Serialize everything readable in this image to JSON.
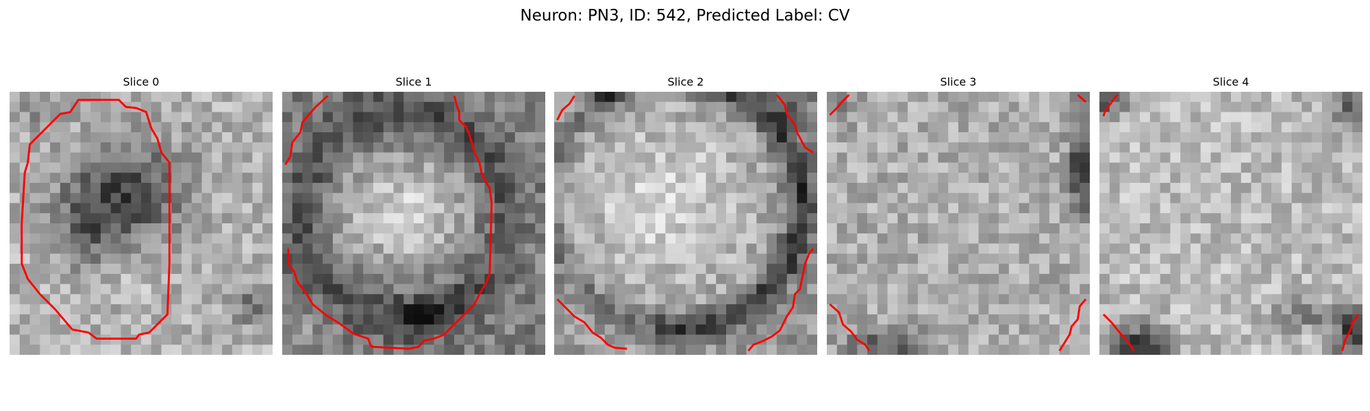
{
  "figure": {
    "title": "Neuron: PN3, ID: 542, Predicted Label: CV"
  },
  "panels": [
    {
      "title": "Slice 0",
      "pattern": "dark-blob-center",
      "contour_color": "#ff0000",
      "contours": [
        [
          [
            9.5,
            0.8
          ],
          [
            6.8,
            0.8
          ],
          [
            6.0,
            2.0
          ],
          [
            5.0,
            2.2
          ],
          [
            2.0,
            5.2
          ],
          [
            1.8,
            7.0
          ],
          [
            1.5,
            8.0
          ],
          [
            1.2,
            13.0
          ],
          [
            1.2,
            17.0
          ],
          [
            1.8,
            18.5
          ],
          [
            3.0,
            20.0
          ],
          [
            4.5,
            21.5
          ],
          [
            6.2,
            23.5
          ],
          [
            7.8,
            23.8
          ],
          [
            8.6,
            24.4
          ],
          [
            12.5,
            24.4
          ],
          [
            12.8,
            24.0
          ],
          [
            13.8,
            23.8
          ],
          [
            14.6,
            23.0
          ],
          [
            15.6,
            22.0
          ],
          [
            15.8,
            17.0
          ],
          [
            15.8,
            7.0
          ],
          [
            15.0,
            6.0
          ],
          [
            14.6,
            4.6
          ],
          [
            14.0,
            3.6
          ],
          [
            13.5,
            2.0
          ],
          [
            12.5,
            1.6
          ],
          [
            11.5,
            1.5
          ],
          [
            10.8,
            0.8
          ],
          [
            9.5,
            0.8
          ]
        ]
      ]
    },
    {
      "title": "Slice 1",
      "pattern": "bright-blob-dark-ring",
      "contour_color": "#ff0000",
      "contours": [
        [
          [
            0.3,
            7.2
          ],
          [
            0.8,
            6.4
          ],
          [
            1.0,
            5.0
          ],
          [
            1.8,
            4.0
          ],
          [
            2.0,
            3.0
          ],
          [
            3.3,
            1.5
          ],
          [
            4.5,
            0.4
          ]
        ],
        [
          [
            0.6,
            15.5
          ],
          [
            0.6,
            17.0
          ],
          [
            1.2,
            17.8
          ],
          [
            1.5,
            18.8
          ],
          [
            2.3,
            19.8
          ],
          [
            3.0,
            21.0
          ],
          [
            4.5,
            22.2
          ],
          [
            5.5,
            22.8
          ],
          [
            6.5,
            23.5
          ],
          [
            7.0,
            23.9
          ],
          [
            8.5,
            24.4
          ],
          [
            8.8,
            25.2
          ],
          [
            12.5,
            25.4
          ],
          [
            13.5,
            25.2
          ],
          [
            14.0,
            24.6
          ],
          [
            15.0,
            24.4
          ],
          [
            16.0,
            24.0
          ],
          [
            17.0,
            23.0
          ],
          [
            18.0,
            22.0
          ],
          [
            19.0,
            21.0
          ],
          [
            19.5,
            20.0
          ],
          [
            20.2,
            18.8
          ],
          [
            20.5,
            18.0
          ],
          [
            20.6,
            15.0
          ],
          [
            20.7,
            11.0
          ],
          [
            20.5,
            9.5
          ],
          [
            20.0,
            8.7
          ],
          [
            19.7,
            8.0
          ],
          [
            19.5,
            7.0
          ],
          [
            19.0,
            6.0
          ],
          [
            18.5,
            4.2
          ],
          [
            18.2,
            3.5
          ],
          [
            17.5,
            2.8
          ],
          [
            17.5,
            2.0
          ],
          [
            17.3,
            1.5
          ],
          [
            17.0,
            0.4
          ]
        ]
      ]
    },
    {
      "title": "Slice 2",
      "pattern": "bright-disk-dark-ring-right",
      "contour_color": "#ff0000",
      "contours": [
        [
          [
            0.3,
            2.8
          ],
          [
            0.8,
            1.8
          ],
          [
            1.5,
            1.2
          ],
          [
            2.0,
            0.4
          ]
        ],
        [
          [
            22.0,
            0.3
          ],
          [
            22.8,
            1.3
          ],
          [
            23.0,
            2.2
          ],
          [
            23.8,
            3.3
          ],
          [
            24.0,
            4.0
          ],
          [
            24.8,
            5.5
          ],
          [
            25.6,
            6.0
          ]
        ],
        [
          [
            0.3,
            20.5
          ],
          [
            1.0,
            21.2
          ],
          [
            2.0,
            22.2
          ],
          [
            3.0,
            22.8
          ],
          [
            3.8,
            23.8
          ],
          [
            4.6,
            24.3
          ],
          [
            5.3,
            25.0
          ],
          [
            6.0,
            25.3
          ],
          [
            7.2,
            25.4
          ]
        ],
        [
          [
            25.6,
            15.5
          ],
          [
            25.2,
            16.0
          ],
          [
            24.8,
            17.0
          ],
          [
            24.6,
            18.0
          ],
          [
            24.3,
            19.5
          ],
          [
            23.8,
            20.0
          ],
          [
            23.6,
            21.3
          ],
          [
            23.0,
            22.2
          ],
          [
            22.3,
            23.6
          ],
          [
            21.5,
            24.2
          ],
          [
            20.7,
            24.6
          ],
          [
            19.7,
            25.0
          ],
          [
            19.2,
            25.6
          ]
        ]
      ]
    },
    {
      "title": "Slice 3",
      "pattern": "textured-dark-right-edge",
      "contour_color": "#ff0000",
      "contours": [
        [
          [
            0.3,
            2.3
          ],
          [
            1.0,
            1.6
          ],
          [
            1.5,
            1.0
          ],
          [
            2.2,
            0.3
          ]
        ],
        [
          [
            24.8,
            0.3
          ],
          [
            25.6,
            1.0
          ]
        ],
        [
          [
            0.3,
            21.0
          ],
          [
            1.2,
            21.8
          ],
          [
            1.6,
            23.0
          ],
          [
            2.4,
            23.7
          ],
          [
            3.0,
            24.5
          ],
          [
            3.8,
            25.0
          ],
          [
            4.2,
            25.6
          ]
        ],
        [
          [
            25.6,
            20.5
          ],
          [
            25.0,
            21.2
          ],
          [
            24.8,
            22.5
          ],
          [
            24.2,
            23.2
          ],
          [
            24.0,
            24.0
          ],
          [
            23.5,
            24.8
          ],
          [
            23.0,
            25.6
          ]
        ]
      ]
    },
    {
      "title": "Slice 4",
      "pattern": "bright-field-dark-corners",
      "contour_color": "#ff0000",
      "contours": [
        [
          [
            0.4,
            2.4
          ],
          [
            0.6,
            1.8
          ],
          [
            1.1,
            1.2
          ],
          [
            1.5,
            0.6
          ],
          [
            1.8,
            0.3
          ]
        ],
        [
          [
            0.4,
            22.0
          ],
          [
            1.2,
            22.8
          ],
          [
            2.0,
            23.8
          ],
          [
            2.9,
            24.8
          ],
          [
            3.4,
            25.6
          ]
        ],
        [
          [
            25.6,
            22.0
          ],
          [
            25.0,
            22.8
          ],
          [
            24.8,
            23.6
          ],
          [
            24.3,
            24.5
          ],
          [
            24.0,
            25.6
          ]
        ]
      ]
    }
  ]
}
